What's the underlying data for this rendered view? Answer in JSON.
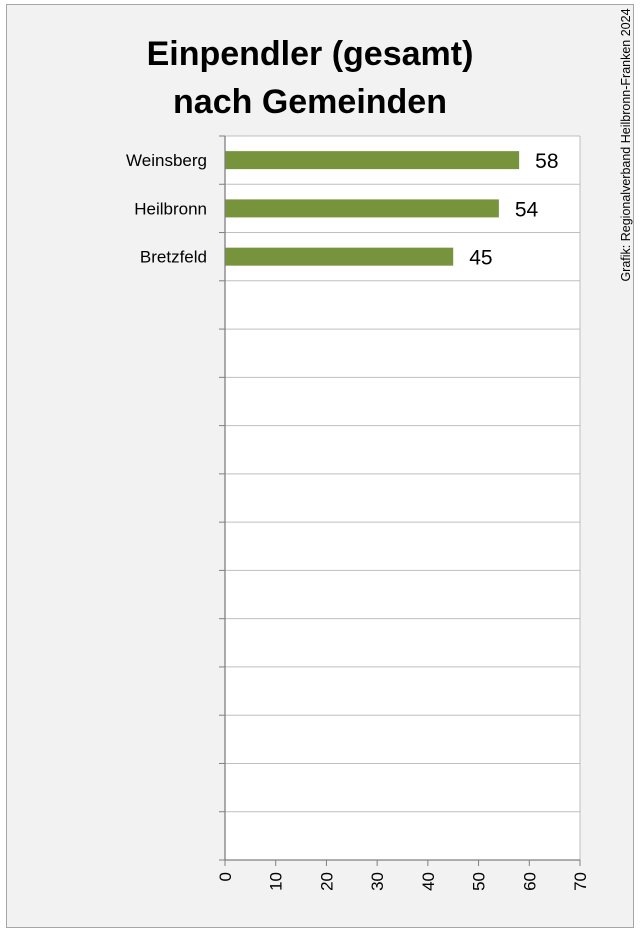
{
  "source_note": "Grafik: Regionalverband Heilbronn-Franken 2024",
  "colors": {
    "bar": "#77933c",
    "grid": "#bfbfbf",
    "axis": "#808080",
    "plot_bg": "#ffffff",
    "frame_bg": "#f2f2f2"
  },
  "chart_data": {
    "type": "bar",
    "orientation": "horizontal",
    "title_lines": [
      "Einpendler (gesamt)",
      "nach Gemeinden"
    ],
    "categories": [
      "Weinsberg",
      "Heilbronn",
      "Bretzfeld"
    ],
    "values": [
      58,
      54,
      45
    ],
    "data_labels": [
      "58",
      "54",
      "45"
    ],
    "xlim": [
      0,
      70
    ],
    "x_ticks": [
      0,
      10,
      20,
      30,
      40,
      50,
      60,
      70
    ],
    "category_slots": 15,
    "grid": true,
    "legend": "none"
  }
}
